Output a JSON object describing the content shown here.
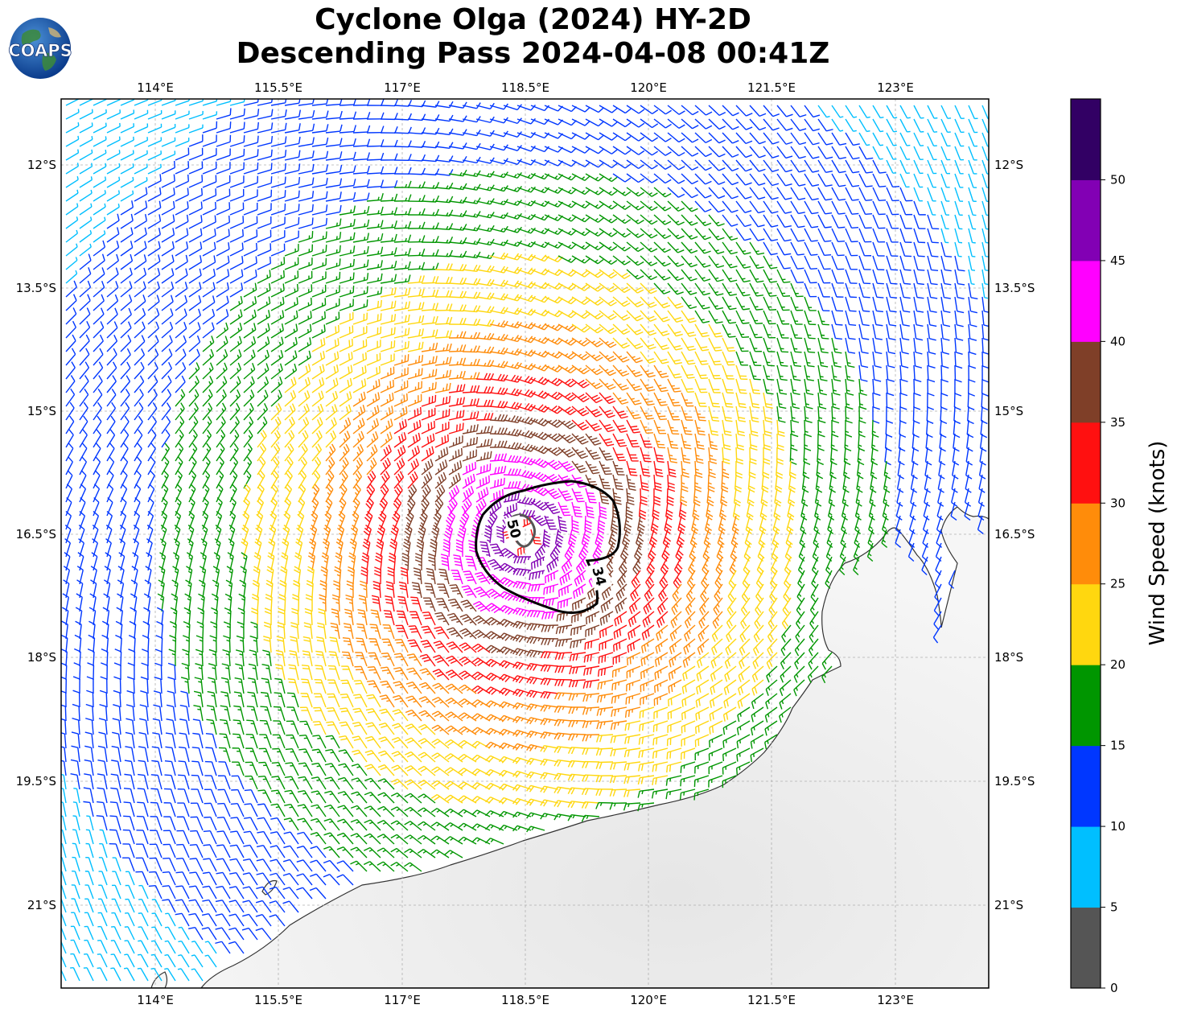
{
  "header": {
    "title_line1": "Cyclone Olga (2024) HY-2D",
    "title_line2": "Descending Pass 2024-04-08 00:41Z",
    "logo_text": "COAPS"
  },
  "map": {
    "lon_labels": [
      "114°E",
      "115.5°E",
      "117°E",
      "118.5°E",
      "120°E",
      "121.5°E",
      "123°E"
    ],
    "lat_labels": [
      "12°S",
      "13.5°S",
      "15°S",
      "16.5°S",
      "18°S",
      "19.5°S",
      "21°S"
    ],
    "contours": [
      {
        "label": "34",
        "color": "#000000"
      },
      {
        "label": "50",
        "color": "#555555"
      }
    ],
    "land_color": "#f0f0f0",
    "coast_color": "#333333",
    "grid": true
  },
  "colorbar": {
    "label": "Wind Speed (knots)",
    "ticks": [
      "0",
      "5",
      "10",
      "15",
      "20",
      "25",
      "30",
      "35",
      "40",
      "45",
      "50"
    ],
    "bins": [
      {
        "range": "0-5",
        "color": "#555555"
      },
      {
        "range": "5-10",
        "color": "#00bfff"
      },
      {
        "range": "10-15",
        "color": "#0037ff"
      },
      {
        "range": "15-20",
        "color": "#009600"
      },
      {
        "range": "20-25",
        "color": "#ffd70f"
      },
      {
        "range": "25-30",
        "color": "#ff8c0a"
      },
      {
        "range": "30-35",
        "color": "#ff1010"
      },
      {
        "range": "35-40",
        "color": "#7f3f28"
      },
      {
        "range": "40-45",
        "color": "#ff00ff"
      },
      {
        "range": "45-50",
        "color": "#8200b4"
      },
      {
        "range": "50+",
        "color": "#320064"
      }
    ]
  }
}
